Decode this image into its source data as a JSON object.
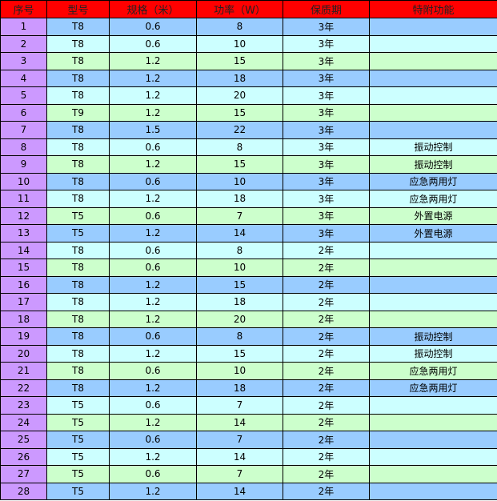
{
  "colors": {
    "header": "#ff0000",
    "index_column": "#cc99ff",
    "row_blue": "#99ccff",
    "row_cyan": "#ccffff",
    "row_green": "#ccffcc"
  },
  "headers": [
    "序号",
    "型号",
    "规格（米）",
    "功率（W）",
    "保质期",
    "特附功能"
  ],
  "rows": [
    [
      "1",
      "T8",
      "0.6",
      "8",
      "3年",
      ""
    ],
    [
      "2",
      "T8",
      "0.6",
      "10",
      "3年",
      ""
    ],
    [
      "3",
      "T8",
      "1.2",
      "15",
      "3年",
      ""
    ],
    [
      "4",
      "T8",
      "1.2",
      "18",
      "3年",
      ""
    ],
    [
      "5",
      "T8",
      "1.2",
      "20",
      "3年",
      ""
    ],
    [
      "6",
      "T9",
      "1.2",
      "15",
      "3年",
      ""
    ],
    [
      "7",
      "T8",
      "1.5",
      "22",
      "3年",
      ""
    ],
    [
      "8",
      "T8",
      "0.6",
      "8",
      "3年",
      "振动控制"
    ],
    [
      "9",
      "T8",
      "1.2",
      "15",
      "3年",
      "振动控制"
    ],
    [
      "10",
      "T8",
      "0.6",
      "10",
      "3年",
      "应急两用灯"
    ],
    [
      "11",
      "T8",
      "1.2",
      "18",
      "3年",
      "应急两用灯"
    ],
    [
      "12",
      "T5",
      "0.6",
      "7",
      "3年",
      "外置电源"
    ],
    [
      "13",
      "T5",
      "1.2",
      "14",
      "3年",
      "外置电源"
    ],
    [
      "14",
      "T8",
      "0.6",
      "8",
      "2年",
      ""
    ],
    [
      "15",
      "T8",
      "0.6",
      "10",
      "2年",
      ""
    ],
    [
      "16",
      "T8",
      "1.2",
      "15",
      "2年",
      ""
    ],
    [
      "17",
      "T8",
      "1.2",
      "18",
      "2年",
      ""
    ],
    [
      "18",
      "T8",
      "1.2",
      "20",
      "2年",
      ""
    ],
    [
      "19",
      "T8",
      "0.6",
      "8",
      "2年",
      "振动控制"
    ],
    [
      "20",
      "T8",
      "1.2",
      "15",
      "2年",
      "振动控制"
    ],
    [
      "21",
      "T8",
      "0.6",
      "10",
      "2年",
      "应急两用灯"
    ],
    [
      "22",
      "T8",
      "1.2",
      "18",
      "2年",
      "应急两用灯"
    ],
    [
      "23",
      "T5",
      "0.6",
      "7",
      "2年",
      ""
    ],
    [
      "24",
      "T5",
      "1.2",
      "14",
      "2年",
      ""
    ],
    [
      "25",
      "T5",
      "0.6",
      "7",
      "2年",
      ""
    ],
    [
      "26",
      "T5",
      "1.2",
      "14",
      "2年",
      ""
    ],
    [
      "27",
      "T5",
      "0.6",
      "7",
      "2年",
      ""
    ],
    [
      "28",
      "T5",
      "1.2",
      "14",
      "2年",
      ""
    ]
  ]
}
